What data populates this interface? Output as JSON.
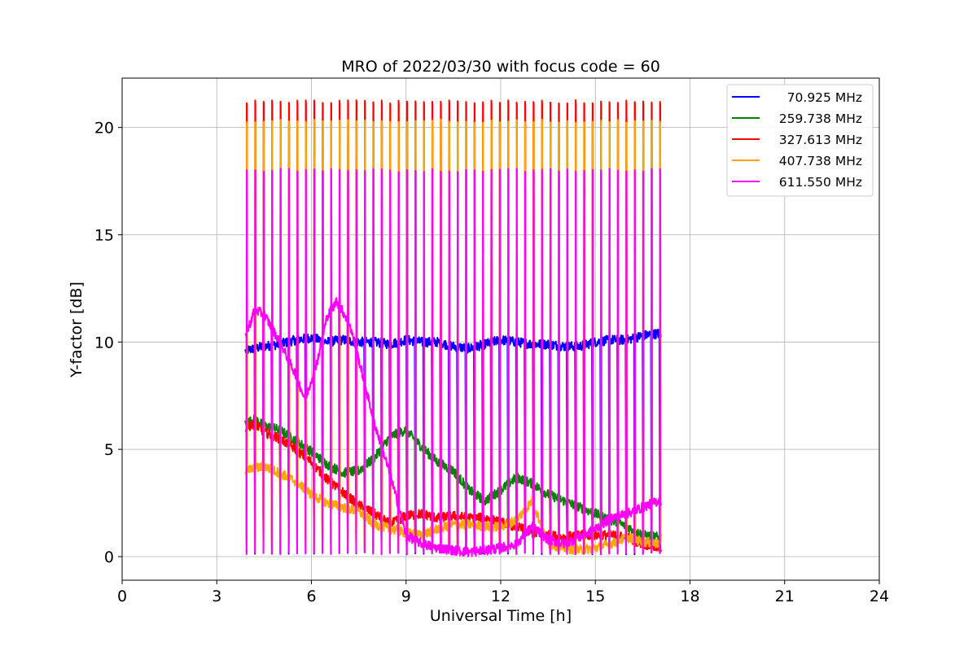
{
  "chart_data": {
    "type": "line",
    "title": "MRO of 2022/03/30 with focus code = 60",
    "xlabel": "Universal Time [h]",
    "ylabel": "Y-factor [dB]",
    "xlim": [
      0,
      24
    ],
    "ylim": [
      -1.1,
      22.3
    ],
    "xticks": [
      0,
      3,
      6,
      9,
      12,
      15,
      18,
      21,
      24
    ],
    "yticks": [
      0,
      5,
      10,
      15,
      20
    ],
    "grid": true,
    "legend_position": "top-right",
    "pulse": {
      "start": 3.95,
      "end": 17.05,
      "count": 50,
      "times": [
        3.95,
        4.2173,
        4.4847,
        4.752,
        5.0194,
        5.2867,
        5.554,
        5.8214,
        6.0887,
        6.3561,
        6.6234,
        6.8908,
        7.1581,
        7.4255,
        7.6928,
        7.9602,
        8.2275,
        8.4949,
        8.7622,
        9.0296,
        9.2969,
        9.5643,
        9.8316,
        10.099,
        10.3663,
        10.6337,
        10.901,
        11.1684,
        11.4357,
        11.7031,
        11.9704,
        12.2378,
        12.5051,
        12.7724,
        13.0398,
        13.3071,
        13.5745,
        13.8418,
        14.1092,
        14.3765,
        14.6439,
        14.9112,
        15.1786,
        15.4459,
        15.7133,
        15.9806,
        16.248,
        16.5153,
        16.7827,
        17.05
      ]
    },
    "series": [
      {
        "name": "70.925 MHz",
        "color": "#0000ff",
        "pulse_peak": 10.2,
        "pulse_low": 0.15,
        "baseline": {
          "x": [
            3.9,
            4.2,
            4.5,
            5.0,
            5.5,
            6.0,
            6.5,
            7.0,
            7.5,
            8.0,
            8.5,
            9.0,
            9.5,
            10.0,
            10.5,
            11.0,
            11.5,
            12.0,
            12.5,
            13.0,
            13.5,
            14.0,
            14.5,
            15.0,
            15.5,
            16.0,
            16.5,
            17.0
          ],
          "y": [
            9.6,
            9.7,
            9.8,
            9.9,
            10.1,
            10.2,
            10.0,
            10.1,
            10.0,
            10.0,
            9.9,
            10.1,
            10.0,
            10.0,
            9.8,
            9.7,
            9.9,
            10.1,
            10.0,
            9.9,
            9.9,
            9.8,
            9.8,
            10.0,
            10.1,
            10.1,
            10.3,
            10.4
          ]
        }
      },
      {
        "name": "259.738 MHz",
        "color": "#008000",
        "pulse_peak": 20.3,
        "pulse_low": 0.9,
        "baseline": {
          "x": [
            3.9,
            4.2,
            4.5,
            5.0,
            5.5,
            6.0,
            6.5,
            7.0,
            7.5,
            8.0,
            8.5,
            9.0,
            9.5,
            10.0,
            10.5,
            11.0,
            11.5,
            12.0,
            12.5,
            13.0,
            13.5,
            14.0,
            14.5,
            15.0,
            15.5,
            16.0,
            16.5,
            17.0
          ],
          "y": [
            6.2,
            6.4,
            6.1,
            5.9,
            5.4,
            4.9,
            4.3,
            3.9,
            4.0,
            4.6,
            5.6,
            5.9,
            5.1,
            4.4,
            4.0,
            3.1,
            2.6,
            3.1,
            3.7,
            3.4,
            2.9,
            2.6,
            2.3,
            2.0,
            1.7,
            1.4,
            1.0,
            0.9
          ]
        }
      },
      {
        "name": "327.613 MHz",
        "color": "#ff0000",
        "pulse_peak": 21.2,
        "pulse_low": 0.6,
        "baseline": {
          "x": [
            3.9,
            4.2,
            4.5,
            5.0,
            5.5,
            6.0,
            6.5,
            7.0,
            7.5,
            8.0,
            8.5,
            9.0,
            9.5,
            10.0,
            10.5,
            11.0,
            11.5,
            12.0,
            12.5,
            13.0,
            13.5,
            14.0,
            14.5,
            15.0,
            15.5,
            16.0,
            16.5,
            17.0
          ],
          "y": [
            6.0,
            6.2,
            5.8,
            5.5,
            5.0,
            4.4,
            3.6,
            3.0,
            2.4,
            2.0,
            1.5,
            1.9,
            2.0,
            1.8,
            1.9,
            1.8,
            1.8,
            1.6,
            1.4,
            1.1,
            1.0,
            0.9,
            1.0,
            1.0,
            1.0,
            0.9,
            0.6,
            0.4
          ]
        }
      },
      {
        "name": "407.738 MHz",
        "color": "#ffa500",
        "pulse_peak": 20.3,
        "pulse_low": 0.3,
        "baseline": {
          "x": [
            3.9,
            4.2,
            4.5,
            5.0,
            5.5,
            6.0,
            6.5,
            7.0,
            7.5,
            8.0,
            8.5,
            9.0,
            9.5,
            10.0,
            10.5,
            11.0,
            11.5,
            12.0,
            12.5,
            13.0,
            13.5,
            14.0,
            14.5,
            15.0,
            15.5,
            16.0,
            16.5,
            17.0
          ],
          "y": [
            4.0,
            4.1,
            4.2,
            3.9,
            3.5,
            2.9,
            2.5,
            2.3,
            2.1,
            1.5,
            1.3,
            1.1,
            1.0,
            1.3,
            1.5,
            1.5,
            1.4,
            1.4,
            1.7,
            2.6,
            0.6,
            0.4,
            0.3,
            0.4,
            0.6,
            0.9,
            0.7,
            0.6
          ]
        }
      },
      {
        "name": "611.550 MHz",
        "color": "#ff00ff",
        "pulse_peak": 18.0,
        "pulse_low": 0.15,
        "baseline": {
          "x": [
            3.9,
            4.2,
            4.5,
            5.0,
            5.5,
            5.8,
            6.2,
            6.5,
            6.8,
            7.2,
            7.6,
            8.0,
            8.5,
            9.0,
            9.5,
            10.0,
            10.5,
            11.0,
            11.5,
            12.0,
            12.5,
            13.0,
            13.5,
            14.0,
            14.5,
            15.0,
            15.5,
            16.0,
            16.5,
            17.0
          ],
          "y": [
            10.2,
            11.5,
            11.3,
            10.0,
            8.5,
            7.3,
            9.2,
            11.2,
            11.9,
            10.9,
            8.6,
            6.2,
            3.8,
            1.0,
            0.6,
            0.4,
            0.3,
            0.2,
            0.3,
            0.4,
            0.6,
            1.4,
            0.8,
            0.6,
            0.9,
            1.3,
            1.8,
            2.0,
            2.3,
            2.6
          ]
        }
      }
    ]
  }
}
